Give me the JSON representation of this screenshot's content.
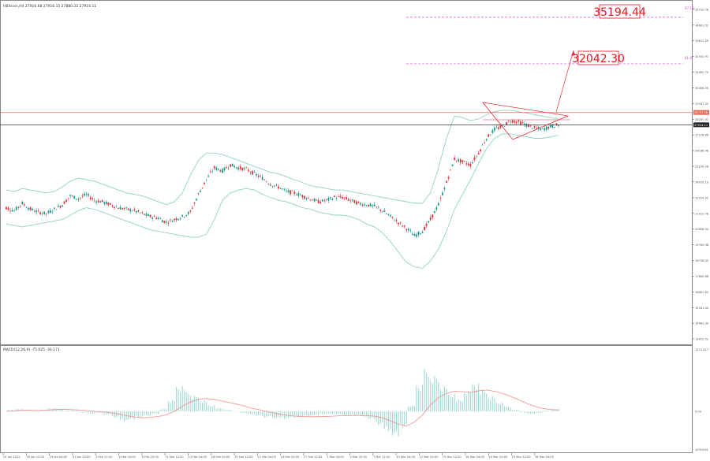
{
  "colors": {
    "bull": "#1a9a8a",
    "bear": "#e2333e",
    "bands": "#8fd3c0",
    "resistance": "#e26a5a",
    "current": "#333333",
    "target": "#e040e0",
    "label_red": "#e8141e",
    "macd_hist": "#9fd9d2",
    "macd_signal": "#f08c8c",
    "grid_text": "#555555"
  },
  "header": {
    "symbol_line": "HBitcoin,H4  27916.68 27916.15 27880.22 27914.11"
  },
  "annotations": {
    "target1": "35194.44",
    "target2": "32042.30",
    "target1_small": "97.1%",
    "target2_small": "81.8"
  },
  "price_axis": {
    "ticks": [
      "35720.78",
      "34661.52",
      "33621.09",
      "32541.91",
      "31482.70",
      "30406.50",
      "29347.35",
      "28287.92",
      "27228.66",
      "26168.48",
      "25109.28",
      "24050.10",
      "22974.92",
      "21915.78",
      "20856.54",
      "19789.38",
      "18738.00",
      "17660.86",
      "16601.62",
      "15541.44",
      "14481.30",
      "13422.02"
    ],
    "resistance_label": "28747.08",
    "current_label": "27914.11"
  },
  "macd": {
    "label": "MACD(12,26,9) -75.025 -30.171",
    "ticks": [
      "1271.617",
      "0.00",
      "-879.693"
    ]
  },
  "time_axis": {
    "labels": [
      "24 Jan 2022",
      "26 Jan 12:00",
      "29 Jan 04:00",
      "31 Jan 20:00",
      "3 Feb 12:00",
      "6 Feb 04:00",
      "8 Feb 20:00",
      "11 Feb 12:00",
      "14 Feb 04:00",
      "16 Feb 20:00",
      "19 Feb 12:00",
      "22 Feb 04:00",
      "24 Feb 20:00",
      "27 Feb 12:00",
      "2 Mar 04:00",
      "4 Mar 20:00",
      "7 Mar 12:00",
      "10 Mar 04:00",
      "12 Mar 20:00",
      "15 Mar 12:00",
      "18 Mar 04:00",
      "20 Mar 20:00",
      "23 Mar 12:00",
      "26 Mar 04:00"
    ]
  },
  "chart_data": {
    "type": "candlestick",
    "symbol": "Bitcoin",
    "timeframe": "H4",
    "resistance": 28747.08,
    "current_price": 27914.11,
    "targets": [
      35194.44,
      32042.3
    ],
    "ylim": [
      13422.02,
      35720.78
    ],
    "key_closes": [
      22300,
      22100,
      22600,
      22200,
      22000,
      21900,
      22200,
      22500,
      23100,
      22900,
      23200,
      22800,
      22700,
      22500,
      22300,
      22200,
      22100,
      21900,
      21700,
      21600,
      21300,
      21500,
      21700,
      22000,
      23200,
      24200,
      25000,
      24800,
      25200,
      25000,
      24900,
      24600,
      24300,
      23900,
      23700,
      23400,
      23300,
      23100,
      22900,
      22700,
      22800,
      23000,
      23000,
      22800,
      22600,
      22500,
      22400,
      22100,
      21700,
      21300,
      20900,
      20400,
      20700,
      21500,
      22500,
      24000,
      25600,
      25400,
      25200,
      26000,
      27000,
      27600,
      27800,
      28200,
      28100,
      27900,
      27700,
      27600,
      27800,
      27900
    ],
    "upper_band": [
      23500,
      23400,
      23600,
      23500,
      23400,
      23300,
      23400,
      23700,
      24100,
      24300,
      24200,
      24100,
      23900,
      23700,
      23500,
      23300,
      23200,
      23100,
      22900,
      22700,
      22500,
      22700,
      23300,
      24500,
      25500,
      26000,
      26000,
      25900,
      25700,
      25500,
      25300,
      25100,
      24900,
      24700,
      24600,
      24400,
      24200,
      24000,
      23800,
      23700,
      23600,
      23500,
      23500,
      23400,
      23300,
      23200,
      23100,
      23000,
      22900,
      22800,
      22700,
      22600,
      22600,
      23300,
      25000,
      27000,
      28500,
      28400,
      28200,
      28300,
      28600,
      28800,
      28900,
      28900,
      28800,
      28700,
      28600,
      28500,
      28400,
      28300
    ],
    "lower_band": [
      21200,
      21100,
      21000,
      21100,
      21200,
      21300,
      21400,
      21500,
      21800,
      22100,
      22300,
      22200,
      22000,
      21800,
      21600,
      21400,
      21200,
      21000,
      20800,
      20700,
      20600,
      20500,
      20400,
      20300,
      20300,
      20500,
      21500,
      22800,
      23300,
      23500,
      23600,
      23500,
      23200,
      23000,
      22800,
      22700,
      22500,
      22300,
      22200,
      22000,
      21900,
      21800,
      21800,
      21700,
      21500,
      21200,
      21000,
      20600,
      20000,
      19300,
      18600,
      18300,
      18200,
      18700,
      19500,
      20700,
      22200,
      23200,
      24200,
      25300,
      26300,
      27000,
      27300,
      27300,
      27200,
      27100,
      27000,
      27000,
      27100,
      27200
    ],
    "macd_hist": [
      10,
      40,
      60,
      30,
      -20,
      40,
      80,
      60,
      20,
      30,
      -30,
      -60,
      -40,
      -90,
      -150,
      -230,
      -200,
      -160,
      -120,
      -60,
      60,
      300,
      650,
      520,
      380,
      260,
      150,
      80,
      40,
      10,
      -40,
      -80,
      -120,
      -150,
      -170,
      -180,
      -160,
      -140,
      -120,
      -100,
      -80,
      -60,
      -80,
      -100,
      -90,
      -130,
      -190,
      -340,
      -490,
      -620,
      -420,
      150,
      680,
      1020,
      860,
      600,
      420,
      300,
      520,
      700,
      560,
      380,
      220,
      120,
      40,
      -30,
      -60,
      -40,
      20,
      60
    ],
    "macd_signal": [
      0,
      10,
      25,
      30,
      20,
      25,
      40,
      50,
      40,
      35,
      20,
      0,
      -10,
      -30,
      -60,
      -100,
      -130,
      -150,
      -140,
      -120,
      -80,
      0,
      120,
      220,
      280,
      300,
      280,
      240,
      200,
      160,
      110,
      60,
      20,
      -20,
      -60,
      -90,
      -110,
      -120,
      -125,
      -125,
      -120,
      -110,
      -100,
      -95,
      -95,
      -100,
      -110,
      -150,
      -220,
      -300,
      -340,
      -250,
      -80,
      150,
      320,
      420,
      470,
      460,
      440,
      480,
      500,
      470,
      420,
      350,
      270,
      190,
      120,
      70,
      40,
      35
    ]
  }
}
